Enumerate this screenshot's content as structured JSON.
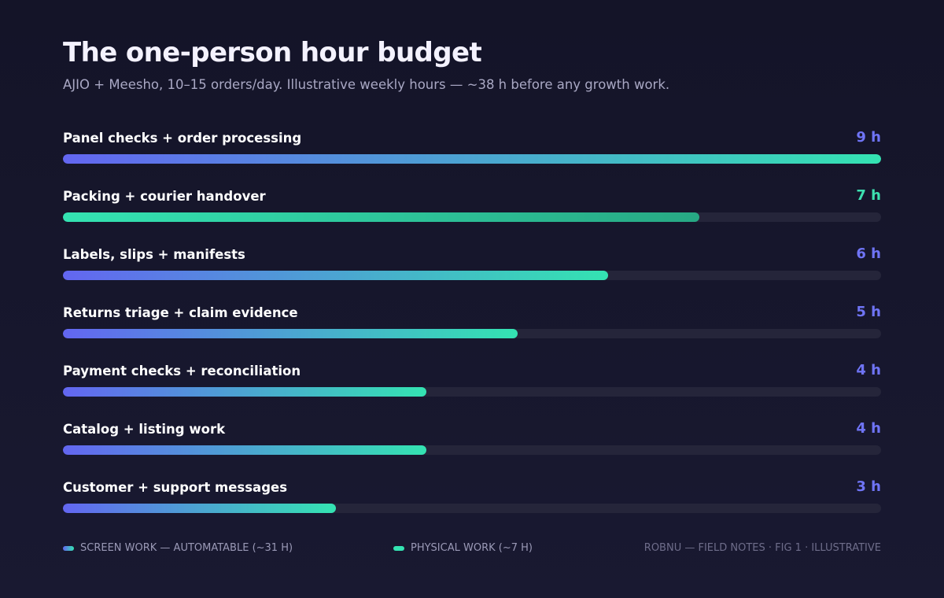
{
  "title": "The one-person hour budget",
  "subtitle": "AJIO + Meesho, 10–15 orders/day. Illustrative weekly hours — ~38 h before any growth work.",
  "colors": {
    "screen_gradient_start": "#6366f1",
    "screen_gradient_end": "#34e3b2",
    "physical_gradient_start": "#34e3b2",
    "physical_gradient_end": "#27a884",
    "screen_value_text": "#6f74f5",
    "physical_value_text": "#3de0b0",
    "track": "#25253a"
  },
  "chart_data": {
    "type": "bar",
    "orientation": "horizontal",
    "unit": "h",
    "xlim": [
      0,
      9
    ],
    "categories": [
      "Panel checks + order processing",
      "Packing + courier handover",
      "Labels, slips + manifests",
      "Returns triage + claim evidence",
      "Payment checks + reconciliation",
      "Catalog + listing work",
      "Customer + support messages"
    ],
    "values": [
      9,
      7,
      6,
      5,
      4,
      4,
      3
    ],
    "value_labels": [
      "9 h",
      "7 h",
      "6 h",
      "5 h",
      "4 h",
      "4 h",
      "3 h"
    ],
    "kinds": [
      "screen",
      "physical",
      "screen",
      "screen",
      "screen",
      "screen",
      "screen"
    ],
    "legend": [
      {
        "kind": "screen",
        "label": "SCREEN WORK — AUTOMATABLE (~31 H)"
      },
      {
        "kind": "physical",
        "label": "PHYSICAL WORK (~7 H)"
      }
    ],
    "grid": false
  },
  "footer": {
    "note": "ROBNU — FIELD NOTES · FIG 1 · ILLUSTRATIVE"
  }
}
